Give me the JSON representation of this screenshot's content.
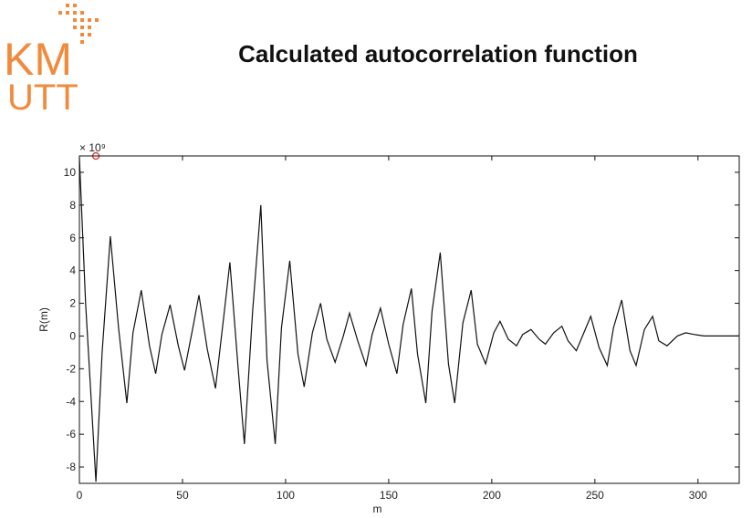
{
  "slide": {
    "title": "Calculated autocorrelation function",
    "logo_text_top": "KM",
    "logo_text_bottom": "UTT",
    "brand_color": "#f28a3c"
  },
  "chart_data": {
    "type": "line",
    "title": "",
    "xlabel": "m",
    "ylabel": "R(m)",
    "y_scale_note": "× 10⁹",
    "xlim": [
      0,
      320
    ],
    "ylim": [
      -9,
      11
    ],
    "x_ticks": [
      0,
      50,
      100,
      150,
      200,
      250,
      300
    ],
    "y_ticks": [
      -8,
      -6,
      -4,
      -2,
      0,
      2,
      4,
      6,
      8,
      10
    ],
    "grid": false,
    "line_color": "#111111",
    "marker": {
      "x": 8,
      "y": 11,
      "color": "#e23c3c"
    },
    "series": [
      {
        "x": [
          0,
          3,
          8,
          11,
          15,
          19,
          23,
          26,
          30,
          34,
          37,
          40,
          44,
          48,
          51,
          55,
          58,
          62,
          66,
          70,
          73,
          77,
          80,
          84,
          88,
          91,
          95,
          98,
          102,
          106,
          109,
          113,
          117,
          120,
          124,
          128,
          131,
          135,
          139,
          142,
          146,
          150,
          154,
          157,
          161,
          164,
          168,
          171,
          175,
          179,
          182,
          186,
          190,
          193,
          197,
          201,
          204,
          208,
          212,
          215,
          219,
          223,
          226,
          230,
          234,
          237,
          241,
          245,
          248,
          252,
          256,
          259,
          263,
          267,
          270,
          274,
          278,
          281,
          285,
          290,
          294,
          298,
          303,
          310,
          320
        ],
        "y": [
          10.9,
          2,
          -8.9,
          -1,
          6.1,
          0.5,
          -4.1,
          0.2,
          2.8,
          -0.6,
          -2.3,
          0.1,
          1.9,
          -0.6,
          -2.1,
          0.5,
          2.5,
          -0.8,
          -3.2,
          1.2,
          4.5,
          -2,
          -6.6,
          1.5,
          8,
          -1.5,
          -6.6,
          0.5,
          4.6,
          -1.1,
          -3.1,
          0.2,
          2,
          -0.2,
          -1.6,
          0,
          1.4,
          -0.3,
          -1.8,
          0.1,
          1.7,
          -0.5,
          -2.3,
          0.7,
          2.9,
          -1.1,
          -4.1,
          1.5,
          5.1,
          -1.7,
          -4.1,
          0.8,
          2.8,
          -0.5,
          -1.7,
          0.2,
          0.9,
          -0.2,
          -0.6,
          0.1,
          0.4,
          -0.2,
          -0.5,
          0.2,
          0.6,
          -0.3,
          -0.9,
          0.3,
          1.2,
          -0.7,
          -1.8,
          0.5,
          2.2,
          -0.9,
          -1.8,
          0.4,
          1.2,
          -0.3,
          -0.6,
          0,
          0.2,
          0.1,
          0,
          0,
          0
        ]
      }
    ]
  }
}
